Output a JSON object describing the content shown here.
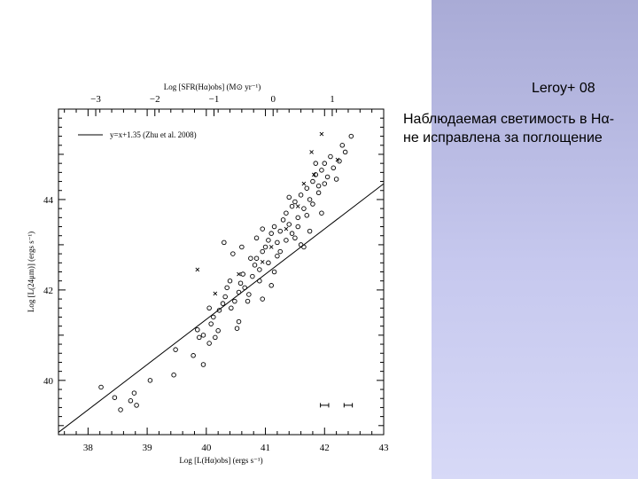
{
  "slide": {
    "reference": "Leroy+ 08",
    "caption": "Наблюдаемая светимость в Hα- не исправлена за поглощение"
  },
  "chart_data": {
    "type": "scatter",
    "xlabel": "Log [L(Hα)obs] (ergs s⁻¹)",
    "ylabel": "Log [L(24μm)] (ergs s⁻¹)",
    "top_xlabel": "Log [SFR(Hα)obs] (M⊙ yr⁻¹)",
    "xlim": [
      37.5,
      43
    ],
    "ylim": [
      38.8,
      46.0
    ],
    "x_ticks": [
      "38",
      "39",
      "40",
      "41",
      "42",
      "43"
    ],
    "y_ticks": [
      "40",
      "42",
      "44"
    ],
    "top_ticks": [
      "−3",
      "−2",
      "−1",
      "0",
      "1"
    ],
    "legend": {
      "label": "y=x+1.35 (Zhu et al. 2008)",
      "placement": "top-left"
    },
    "fit_line": {
      "slope": 1,
      "intercept": 1.35
    },
    "error_bar_example": {
      "x": 42.0,
      "y": 39.45,
      "xerr": 0.07
    },
    "error_bar_example_2": {
      "x": 42.4,
      "y": 39.45,
      "xerr": 0.07
    },
    "series": [
      {
        "marker": "circle",
        "points": [
          [
            38.22,
            39.85
          ],
          [
            38.45,
            39.62
          ],
          [
            38.55,
            39.35
          ],
          [
            38.72,
            39.55
          ],
          [
            38.78,
            39.72
          ],
          [
            38.82,
            39.45
          ],
          [
            39.05,
            40.0
          ],
          [
            39.45,
            40.12
          ],
          [
            39.48,
            40.68
          ],
          [
            39.78,
            40.55
          ],
          [
            39.85,
            41.12
          ],
          [
            39.88,
            40.95
          ],
          [
            39.95,
            40.35
          ],
          [
            40.05,
            40.82
          ],
          [
            40.08,
            41.25
          ],
          [
            40.15,
            40.95
          ],
          [
            40.12,
            41.4
          ],
          [
            40.22,
            41.55
          ],
          [
            40.28,
            41.7
          ],
          [
            40.32,
            41.85
          ],
          [
            40.35,
            42.05
          ],
          [
            40.42,
            41.6
          ],
          [
            40.48,
            41.75
          ],
          [
            40.55,
            41.95
          ],
          [
            40.58,
            42.15
          ],
          [
            40.62,
            42.35
          ],
          [
            40.55,
            41.3
          ],
          [
            40.52,
            41.15
          ],
          [
            40.72,
            41.9
          ],
          [
            40.78,
            42.3
          ],
          [
            40.82,
            42.55
          ],
          [
            40.85,
            42.7
          ],
          [
            40.9,
            42.45
          ],
          [
            40.95,
            42.85
          ],
          [
            41.0,
            42.95
          ],
          [
            41.05,
            43.1
          ],
          [
            41.1,
            43.25
          ],
          [
            41.15,
            43.4
          ],
          [
            41.2,
            43.05
          ],
          [
            41.25,
            43.3
          ],
          [
            41.3,
            43.55
          ],
          [
            41.35,
            43.7
          ],
          [
            41.4,
            43.45
          ],
          [
            41.45,
            43.85
          ],
          [
            41.5,
            43.95
          ],
          [
            41.55,
            43.6
          ],
          [
            41.6,
            44.1
          ],
          [
            41.65,
            43.8
          ],
          [
            41.7,
            44.25
          ],
          [
            41.75,
            44.0
          ],
          [
            41.8,
            44.4
          ],
          [
            41.85,
            44.55
          ],
          [
            41.9,
            44.3
          ],
          [
            41.95,
            44.65
          ],
          [
            42.0,
            44.8
          ],
          [
            42.05,
            44.5
          ],
          [
            42.1,
            44.95
          ],
          [
            42.15,
            44.7
          ],
          [
            42.25,
            44.85
          ],
          [
            42.3,
            45.2
          ],
          [
            42.35,
            45.05
          ],
          [
            42.45,
            45.4
          ],
          [
            40.3,
            43.05
          ],
          [
            40.45,
            42.8
          ],
          [
            40.6,
            42.95
          ],
          [
            40.75,
            42.7
          ],
          [
            40.85,
            43.15
          ],
          [
            40.95,
            43.35
          ],
          [
            41.05,
            42.6
          ],
          [
            41.15,
            42.4
          ],
          [
            41.25,
            42.85
          ],
          [
            41.35,
            43.1
          ],
          [
            41.45,
            43.25
          ],
          [
            41.55,
            43.4
          ],
          [
            41.6,
            43.0
          ],
          [
            41.7,
            43.65
          ],
          [
            41.8,
            43.9
          ],
          [
            41.9,
            44.15
          ],
          [
            42.0,
            44.35
          ],
          [
            41.75,
            43.3
          ],
          [
            41.65,
            42.95
          ],
          [
            40.65,
            42.05
          ],
          [
            40.7,
            41.75
          ],
          [
            40.95,
            41.8
          ],
          [
            41.1,
            42.1
          ],
          [
            40.4,
            42.2
          ],
          [
            40.2,
            41.1
          ],
          [
            40.05,
            41.6
          ],
          [
            39.95,
            41.0
          ],
          [
            41.5,
            43.15
          ],
          [
            41.85,
            44.8
          ],
          [
            42.2,
            44.45
          ],
          [
            41.95,
            43.7
          ],
          [
            41.4,
            44.05
          ],
          [
            40.9,
            42.2
          ],
          [
            41.2,
            42.75
          ]
        ]
      },
      {
        "marker": "cross",
        "points": [
          [
            39.85,
            42.45
          ],
          [
            40.15,
            41.92
          ],
          [
            41.78,
            45.05
          ],
          [
            41.95,
            45.45
          ],
          [
            42.22,
            44.88
          ],
          [
            40.95,
            42.62
          ],
          [
            41.55,
            43.85
          ],
          [
            41.82,
            44.55
          ],
          [
            40.55,
            42.35
          ],
          [
            41.1,
            42.95
          ],
          [
            41.35,
            43.35
          ],
          [
            41.65,
            44.35
          ]
        ]
      }
    ]
  }
}
